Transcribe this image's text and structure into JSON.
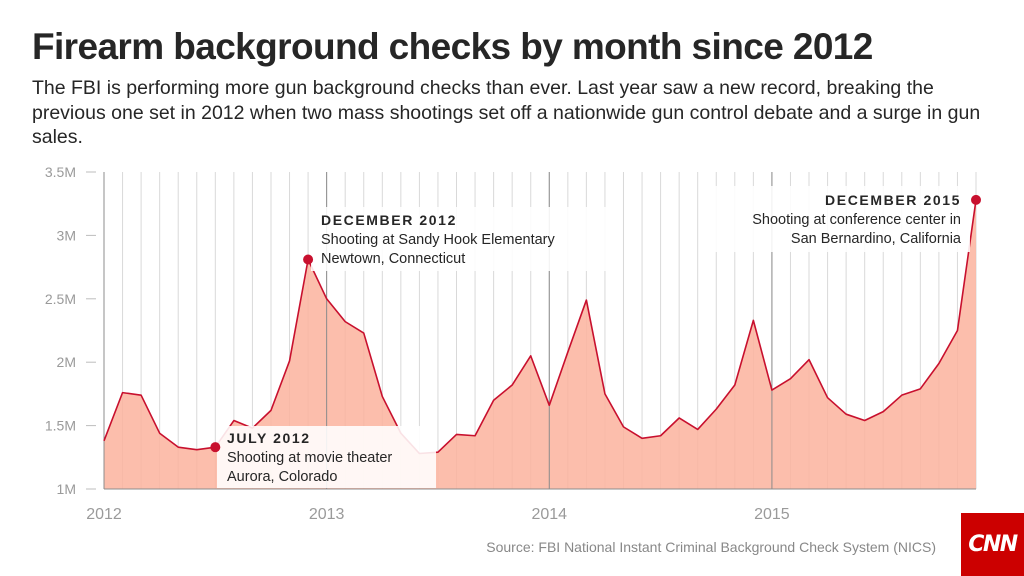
{
  "header": {
    "title": "Firearm background checks by month since 2012",
    "subtitle": "The FBI is performing more gun background checks than ever. Last year saw a new record, breaking the previous one set in 2012 when two mass shootings set off a nationwide gun control debate and a surge in gun sales."
  },
  "footer": {
    "source": "Source: FBI National Instant Criminal Background Check System (NICS)",
    "logo_text": "CNN"
  },
  "colors": {
    "line": "#c8102e",
    "area": "#fbb39d",
    "grid": "#d9d9d9",
    "year_line": "#8c8c8c",
    "logo": "#cc0000"
  },
  "chart_data": {
    "type": "area",
    "title": "Firearm background checks by month since 2012",
    "xlabel": "",
    "ylabel": "",
    "ylim": [
      1000000,
      3500000
    ],
    "grid": true,
    "y_ticks": [
      {
        "value": 1000000,
        "label": "1M"
      },
      {
        "value": 1500000,
        "label": "1.5M"
      },
      {
        "value": 2000000,
        "label": "2M"
      },
      {
        "value": 2500000,
        "label": "2.5M"
      },
      {
        "value": 3000000,
        "label": "3M"
      },
      {
        "value": 3500000,
        "label": "3.5M"
      }
    ],
    "x_ticks": [
      {
        "month": "2012-01",
        "label": "2012"
      },
      {
        "month": "2013-01",
        "label": "2013"
      },
      {
        "month": "2014-01",
        "label": "2014"
      },
      {
        "month": "2015-01",
        "label": "2015"
      }
    ],
    "series": [
      {
        "name": "",
        "months": [
          "2012-01",
          "2012-02",
          "2012-03",
          "2012-04",
          "2012-05",
          "2012-06",
          "2012-07",
          "2012-08",
          "2012-09",
          "2012-10",
          "2012-11",
          "2012-12",
          "2013-01",
          "2013-02",
          "2013-03",
          "2013-04",
          "2013-05",
          "2013-06",
          "2013-07",
          "2013-08",
          "2013-09",
          "2013-10",
          "2013-11",
          "2013-12",
          "2014-01",
          "2014-02",
          "2014-03",
          "2014-04",
          "2014-05",
          "2014-06",
          "2014-07",
          "2014-08",
          "2014-09",
          "2014-10",
          "2014-11",
          "2014-12",
          "2015-01",
          "2015-02",
          "2015-03",
          "2015-04",
          "2015-05",
          "2015-06",
          "2015-07",
          "2015-08",
          "2015-09",
          "2015-10",
          "2015-11",
          "2015-12"
        ],
        "values": [
          1380000,
          1760000,
          1740000,
          1440000,
          1330000,
          1310000,
          1330000,
          1540000,
          1480000,
          1620000,
          2010000,
          2810000,
          2500000,
          2320000,
          2230000,
          1730000,
          1440000,
          1280000,
          1290000,
          1430000,
          1420000,
          1700000,
          1820000,
          2050000,
          1660000,
          2080000,
          2490000,
          1750000,
          1490000,
          1400000,
          1420000,
          1560000,
          1470000,
          1630000,
          1820000,
          2330000,
          1780000,
          1870000,
          2020000,
          1720000,
          1590000,
          1540000,
          1610000,
          1740000,
          1790000,
          1990000,
          2250000,
          3280000
        ]
      }
    ],
    "annotations": [
      {
        "month": "2012-07",
        "value": 1330000,
        "heading": "JULY 2012",
        "lines": [
          "Shooting at movie theater",
          "Aurora, Colorado"
        ]
      },
      {
        "month": "2012-12",
        "value": 2810000,
        "heading": "DECEMBER 2012",
        "lines": [
          "Shooting at Sandy Hook Elementary",
          "Newtown, Connecticut"
        ]
      },
      {
        "month": "2015-12",
        "value": 3280000,
        "heading": "DECEMBER 2015",
        "lines": [
          "Shooting at conference center in",
          "San Bernardino, California"
        ]
      }
    ]
  }
}
